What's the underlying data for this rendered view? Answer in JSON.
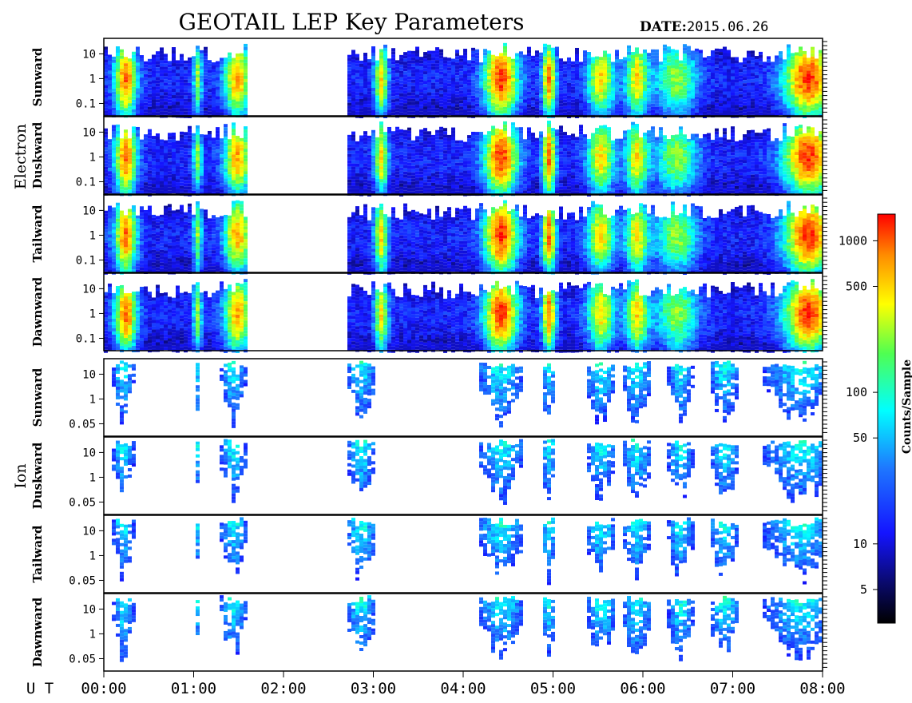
{
  "header": {
    "title": "GEOTAIL LEP Key Parameters",
    "date_label": "DATE:",
    "date_value": "2015.06.26"
  },
  "groups": [
    {
      "name": "Electron"
    },
    {
      "name": "Ion"
    }
  ],
  "time_axis": {
    "label": "U T",
    "ticks": [
      "00:00",
      "01:00",
      "02:00",
      "03:00",
      "04:00",
      "05:00",
      "06:00",
      "07:00",
      "08:00"
    ]
  },
  "colorbar": {
    "label": "Counts/Sample",
    "tick_labels": [
      "5",
      "10",
      "50",
      "100",
      "500",
      "1000"
    ],
    "tick_values": [
      5,
      10,
      50,
      100,
      500,
      1000
    ],
    "range": [
      3,
      1500
    ],
    "scale": "log",
    "colormap": [
      "#000000",
      "#0a0a6e",
      "#1414ff",
      "#1e78ff",
      "#00ffff",
      "#50ff50",
      "#ffff00",
      "#ff8c00",
      "#ff0000"
    ]
  },
  "chart_data": {
    "type": "heatmap",
    "title": "GEOTAIL LEP Key Parameters",
    "x_unit": "UT",
    "x_range": [
      "00:00",
      "08:00"
    ],
    "data_gap": [
      "01:36",
      "02:42"
    ],
    "panels": [
      {
        "group": "Electron",
        "direction": "Sunward",
        "y_scale": "log",
        "y_ticks": [
          "0.1",
          "1",
          "10"
        ]
      },
      {
        "group": "Electron",
        "direction": "Duskward",
        "y_scale": "log",
        "y_ticks": [
          "0.1",
          "1",
          "10"
        ]
      },
      {
        "group": "Electron",
        "direction": "Tailward",
        "y_scale": "log",
        "y_ticks": [
          "0.1",
          "1",
          "10"
        ]
      },
      {
        "group": "Electron",
        "direction": "Dawnward",
        "y_scale": "log",
        "y_ticks": [
          "0.1",
          "1",
          "10"
        ]
      },
      {
        "group": "Ion",
        "direction": "Sunward",
        "y_scale": "log",
        "y_ticks": [
          "0.05",
          "1",
          "10"
        ]
      },
      {
        "group": "Ion",
        "direction": "Duskward",
        "y_scale": "log",
        "y_ticks": [
          "0.05",
          "1",
          "10"
        ]
      },
      {
        "group": "Ion",
        "direction": "Tailward",
        "y_scale": "log",
        "y_ticks": [
          "0.05",
          "1",
          "10"
        ]
      },
      {
        "group": "Ion",
        "direction": "Dawnward",
        "y_scale": "log",
        "y_ticks": [
          "0.05",
          "1",
          "10"
        ]
      }
    ]
  }
}
